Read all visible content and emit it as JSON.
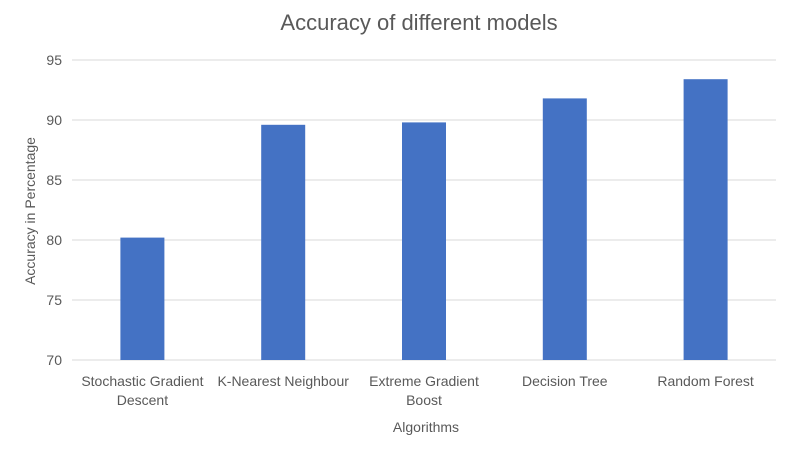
{
  "chart_data": {
    "type": "bar",
    "title": "Accuracy of different models",
    "xlabel": "Algorithms",
    "ylabel": "Accuracy in Percentage",
    "categories": [
      [
        "Stochastic Gradient",
        "Descent"
      ],
      [
        "K-Nearest Neighbour"
      ],
      [
        "Extreme Gradient",
        "Boost"
      ],
      [
        "Decision Tree"
      ],
      [
        "Random Forest"
      ]
    ],
    "values": [
      80.2,
      89.6,
      89.8,
      91.8,
      93.4
    ],
    "ylim": [
      70,
      95
    ],
    "yticks": [
      70,
      75,
      80,
      85,
      90,
      95
    ],
    "grid": true,
    "legend": "none",
    "colors": {
      "bar": "#4472c4",
      "grid": "#d9d9d9",
      "text": "#595959",
      "title": "#595959"
    }
  }
}
